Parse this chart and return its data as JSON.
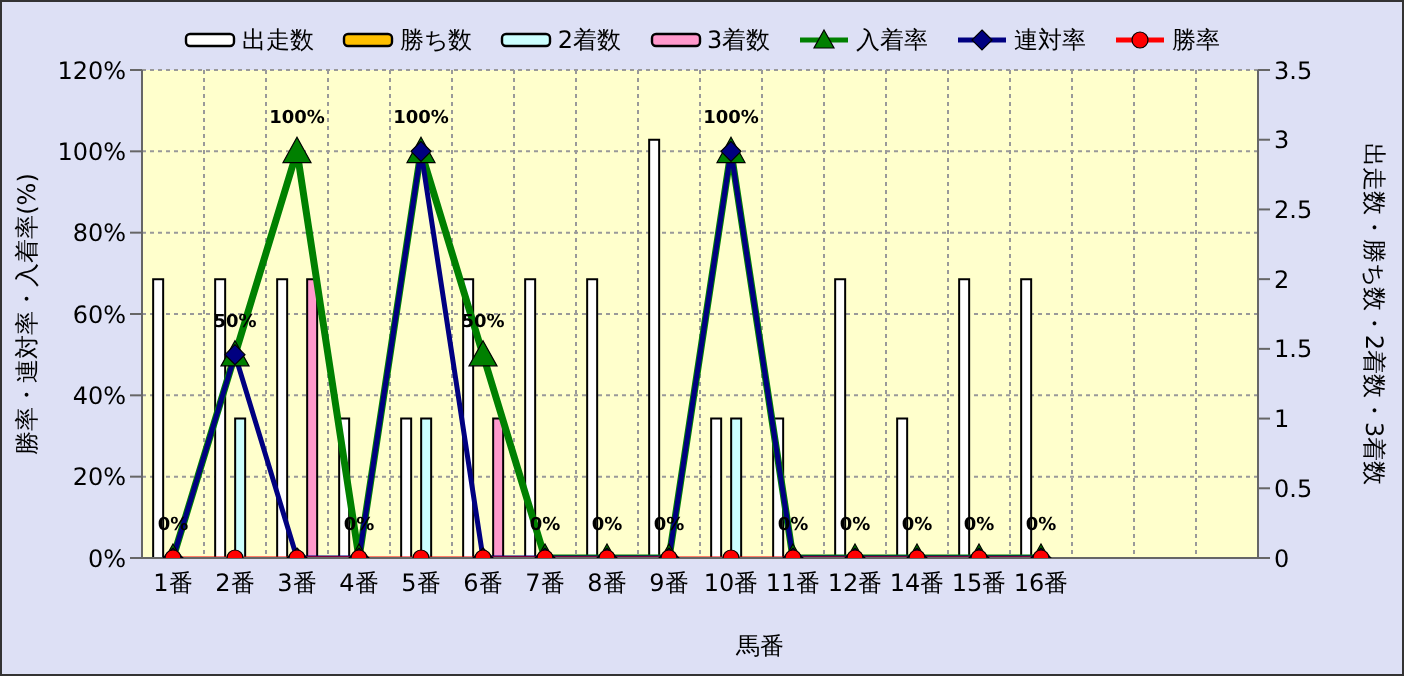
{
  "chart_data": {
    "type": "bar",
    "categories": [
      "1番",
      "2番",
      "3番",
      "4番",
      "5番",
      "6番",
      "7番",
      "8番",
      "9番",
      "10番",
      "11番",
      "12番",
      "14番",
      "15番",
      "16番",
      null,
      null,
      null
    ],
    "xlabel": "馬番",
    "ylabel": "勝率・連対率・入着率(%)",
    "y2label": "出走数・勝ち数・2着数・3着数",
    "series": [
      {
        "name": "出走数",
        "axis": "y2",
        "color": "#ffffff",
        "values": [
          2,
          2,
          2,
          1,
          1,
          2,
          2,
          2,
          3,
          1,
          1,
          2,
          1,
          2,
          2,
          null,
          null,
          null
        ]
      },
      {
        "name": "勝ち数",
        "axis": "y2",
        "color": "#ffc000",
        "values": [
          0,
          0,
          0,
          0,
          0,
          0,
          0,
          0,
          0,
          0,
          0,
          0,
          0,
          0,
          0,
          null,
          null,
          null
        ]
      },
      {
        "name": "2着数",
        "axis": "y2",
        "color": "#ccffff",
        "values": [
          0,
          1,
          0,
          0,
          1,
          0,
          0,
          0,
          0,
          1,
          0,
          0,
          0,
          0,
          0,
          null,
          null,
          null
        ]
      },
      {
        "name": "3着数",
        "axis": "y2",
        "color": "#ff99cc",
        "values": [
          0,
          0,
          2,
          0,
          0,
          1,
          0,
          0,
          0,
          0,
          0,
          0,
          0,
          0,
          0,
          null,
          null,
          null
        ]
      },
      {
        "name": "入着率",
        "type": "line",
        "axis": "y",
        "color": "#008000",
        "marker": "triangle",
        "values": [
          0,
          50,
          100,
          0,
          100,
          50,
          0,
          0,
          0,
          100,
          0,
          0,
          0,
          0,
          0,
          null,
          null,
          null
        ],
        "value_labels": [
          "0%",
          "50%",
          "100%",
          "0%",
          "100%",
          "50%",
          "0%",
          "0%",
          "0%",
          "100%",
          "0%",
          "0%",
          "0%",
          "0%",
          "0%",
          null,
          null,
          null
        ]
      },
      {
        "name": "連対率",
        "type": "line",
        "axis": "y",
        "color": "#000080",
        "marker": "diamond",
        "values": [
          0,
          50,
          0,
          0,
          100,
          0,
          0,
          0,
          0,
          100,
          0,
          0,
          0,
          0,
          0,
          null,
          null,
          null
        ]
      },
      {
        "name": "勝率",
        "type": "line",
        "axis": "y",
        "color": "#ff0000",
        "marker": "circle",
        "values": [
          0,
          0,
          0,
          0,
          0,
          0,
          0,
          0,
          0,
          0,
          0,
          0,
          0,
          0,
          0,
          null,
          null,
          null
        ]
      }
    ],
    "ylim": [
      0,
      120
    ],
    "yticks": [
      {
        "value": 0,
        "label": "0%"
      },
      {
        "value": 20,
        "label": "20%"
      },
      {
        "value": 40,
        "label": "40%"
      },
      {
        "value": 60,
        "label": "60%"
      },
      {
        "value": 80,
        "label": "80%"
      },
      {
        "value": 100,
        "label": "100%"
      },
      {
        "value": 120,
        "label": "120%"
      }
    ],
    "y2lim": [
      0,
      3.5
    ],
    "y2ticks": [
      0,
      0.5,
      1,
      1.5,
      2,
      2.5,
      3,
      3.5
    ],
    "grid": true,
    "legend": "top"
  }
}
